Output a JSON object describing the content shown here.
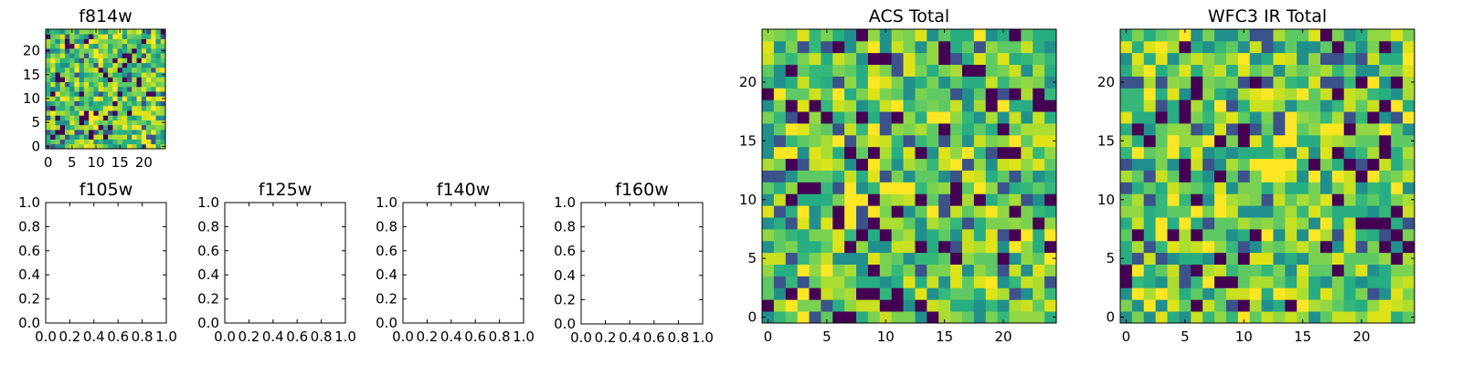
{
  "chart_data": [
    {
      "type": "heatmap",
      "title": "f814w",
      "grid_size": 25,
      "xlim": [
        -0.5,
        24.5
      ],
      "ylim": [
        -0.5,
        24.5
      ],
      "xticks": [
        0,
        5,
        10,
        15,
        20
      ],
      "yticks": [
        0,
        5,
        10,
        15,
        20
      ],
      "colormap": "viridis",
      "seed": 11,
      "low_cells": [
        [
          3,
          3
        ],
        [
          9,
          2
        ],
        [
          12,
          6
        ],
        [
          18,
          20
        ],
        [
          20,
          22
        ],
        [
          5,
          21
        ],
        [
          2,
          15
        ],
        [
          14,
          9
        ],
        [
          22,
          11
        ]
      ]
    },
    {
      "type": "heatmap",
      "title": "f105w",
      "xlim": [
        0.0,
        1.0
      ],
      "ylim": [
        0.0,
        1.0
      ],
      "xticks": [
        "0.0",
        "0.2",
        "0.4",
        "0.6",
        "0.8",
        "1.0"
      ],
      "yticks": [
        "0.0",
        "0.2",
        "0.4",
        "0.6",
        "0.8",
        "1.0"
      ],
      "empty": true
    },
    {
      "type": "heatmap",
      "title": "f125w",
      "xlim": [
        0.0,
        1.0
      ],
      "ylim": [
        0.0,
        1.0
      ],
      "xticks": [
        "0.0",
        "0.2",
        "0.4",
        "0.6",
        "0.8",
        "1.0"
      ],
      "yticks": [
        "0.0",
        "0.2",
        "0.4",
        "0.6",
        "0.8",
        "1.0"
      ],
      "empty": true
    },
    {
      "type": "heatmap",
      "title": "f140w",
      "xlim": [
        0.0,
        1.0
      ],
      "ylim": [
        0.0,
        1.0
      ],
      "xticks": [
        "0.0",
        "0.2",
        "0.4",
        "0.6",
        "0.8",
        "1.0"
      ],
      "yticks": [
        "0.0",
        "0.2",
        "0.4",
        "0.6",
        "0.8",
        "1.0"
      ],
      "empty": true
    },
    {
      "type": "heatmap",
      "title": "f160w",
      "xlim": [
        0.0,
        1.0
      ],
      "ylim": [
        0.0,
        1.0
      ],
      "xticks": [
        "0.0",
        "0.2",
        "0.4",
        "0.6",
        "0.8",
        "1.0"
      ],
      "yticks": [
        "0.0",
        "0.2",
        "0.4",
        "0.6",
        "0.8",
        "1.0"
      ],
      "empty": true
    },
    {
      "type": "heatmap",
      "title": "ACS Total",
      "grid_size": 25,
      "xlim": [
        -0.5,
        24.5
      ],
      "ylim": [
        -0.5,
        24.5
      ],
      "xticks": [
        0,
        5,
        10,
        15,
        20
      ],
      "yticks": [
        0,
        5,
        10,
        15,
        20
      ],
      "colormap": "viridis",
      "seed": 23,
      "low_cells": [
        [
          8,
          24
        ],
        [
          6,
          23
        ],
        [
          2,
          21
        ],
        [
          21,
          19
        ],
        [
          23,
          19
        ],
        [
          7,
          14
        ],
        [
          20,
          14
        ],
        [
          3,
          11
        ],
        [
          23,
          8
        ],
        [
          10,
          1
        ],
        [
          9,
          2
        ],
        [
          11,
          2
        ],
        [
          11,
          1
        ],
        [
          0,
          1
        ],
        [
          24,
          6
        ],
        [
          19,
          19
        ]
      ],
      "high_cells": [
        [
          7,
          11
        ],
        [
          7,
          10
        ],
        [
          8,
          10
        ],
        [
          10,
          11
        ],
        [
          11,
          11
        ],
        [
          14,
          17
        ],
        [
          15,
          17
        ],
        [
          6,
          19
        ],
        [
          9,
          13
        ],
        [
          21,
          15
        ],
        [
          20,
          18
        ],
        [
          16,
          13
        ]
      ]
    },
    {
      "type": "heatmap",
      "title": "WFC3 IR Total",
      "grid_size": 25,
      "xlim": [
        -0.5,
        24.5
      ],
      "ylim": [
        -0.5,
        24.5
      ],
      "xticks": [
        0,
        5,
        10,
        15,
        20
      ],
      "yticks": [
        0,
        5,
        10,
        15,
        20
      ],
      "colormap": "viridis",
      "seed": 37,
      "low_cells": [
        [
          18,
          23
        ],
        [
          6,
          19
        ],
        [
          10,
          16
        ],
        [
          10,
          15
        ],
        [
          8,
          15
        ],
        [
          2,
          15
        ],
        [
          22,
          8
        ],
        [
          23,
          9
        ],
        [
          23,
          7
        ],
        [
          6,
          1
        ],
        [
          9,
          3
        ],
        [
          10,
          1
        ],
        [
          18,
          4
        ],
        [
          21,
          17
        ],
        [
          8,
          5
        ]
      ],
      "high_cells": [
        [
          12,
          13
        ],
        [
          13,
          13
        ],
        [
          14,
          13
        ],
        [
          13,
          12
        ],
        [
          14,
          16
        ],
        [
          14,
          17
        ],
        [
          3,
          8
        ],
        [
          3,
          7
        ],
        [
          18,
          16
        ],
        [
          23,
          11
        ]
      ]
    }
  ]
}
